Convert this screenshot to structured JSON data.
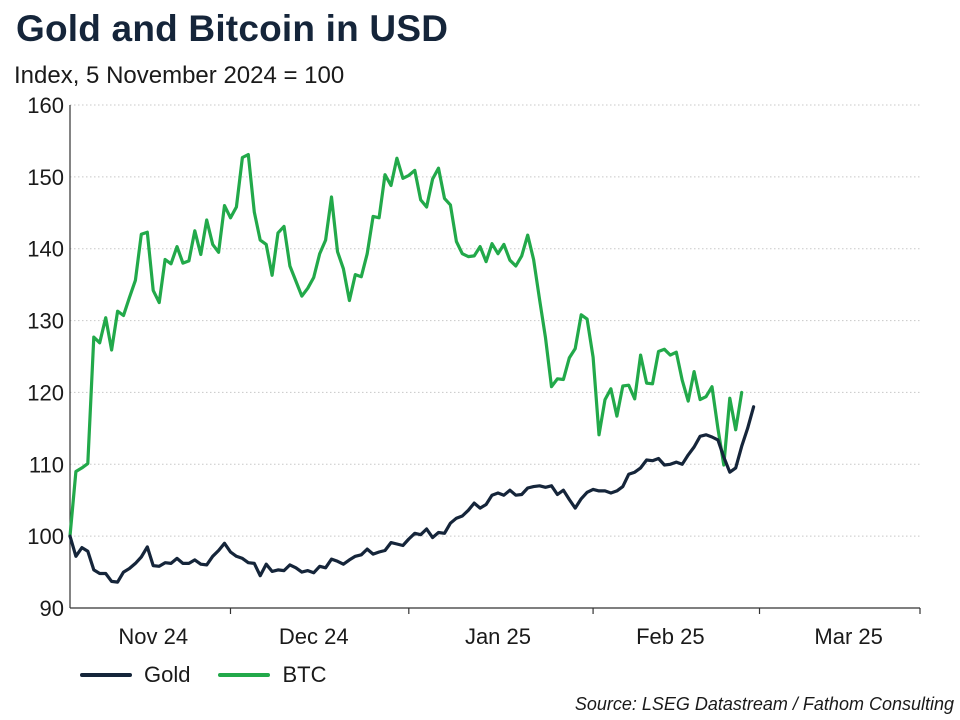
{
  "title": "Gold and Bitcoin in USD",
  "subtitle": "Index, 5 November 2024 = 100",
  "source": "Source: LSEG Datastream / Fathom Consulting",
  "colors": {
    "gold": "#15253a",
    "btc": "#22a94a",
    "grid": "#c8c8c8",
    "axis": "#333333"
  },
  "chart_data": {
    "type": "line",
    "ylim": [
      90,
      160
    ],
    "yticks": [
      90,
      100,
      110,
      120,
      130,
      140,
      150,
      160
    ],
    "x_start": "2024-11-05",
    "x_end": "2025-03-28",
    "xtick_labels": [
      {
        "label": "Nov 24",
        "date": "2024-11-19"
      },
      {
        "label": "Dec 24",
        "date": "2024-12-16"
      },
      {
        "label": "Jan 25",
        "date": "2025-01-16"
      },
      {
        "label": "Feb 25",
        "date": "2025-02-14"
      },
      {
        "label": "Mar 25",
        "date": "2025-03-16"
      }
    ],
    "xtick_dividers": [
      "2024-12-02",
      "2025-01-01",
      "2025-02-01",
      "2025-03-01",
      "2025-04-01"
    ],
    "grid": true,
    "legend": "bottom-left",
    "series": [
      {
        "name": "Gold",
        "points": [
          [
            "2024-11-05",
            100.0
          ],
          [
            "2024-11-06",
            97.2
          ],
          [
            "2024-11-07",
            98.4
          ],
          [
            "2024-11-08",
            97.9
          ],
          [
            "2024-11-09",
            95.3
          ],
          [
            "2024-11-10",
            94.8
          ],
          [
            "2024-11-11",
            94.8
          ],
          [
            "2024-11-12",
            93.7
          ],
          [
            "2024-11-13",
            93.6
          ],
          [
            "2024-11-14",
            95.0
          ],
          [
            "2024-11-15",
            95.5
          ],
          [
            "2024-11-16",
            96.2
          ],
          [
            "2024-11-17",
            97.1
          ],
          [
            "2024-11-18",
            98.5
          ],
          [
            "2024-11-19",
            95.9
          ],
          [
            "2024-11-20",
            95.8
          ],
          [
            "2024-11-21",
            96.3
          ],
          [
            "2024-11-22",
            96.2
          ],
          [
            "2024-11-23",
            96.9
          ],
          [
            "2024-11-24",
            96.2
          ],
          [
            "2024-11-25",
            96.2
          ],
          [
            "2024-11-26",
            96.7
          ],
          [
            "2024-11-27",
            96.1
          ],
          [
            "2024-11-28",
            96.0
          ],
          [
            "2024-11-29",
            97.2
          ],
          [
            "2024-11-30",
            98.0
          ],
          [
            "2024-12-01",
            99.0
          ],
          [
            "2024-12-02",
            97.8
          ],
          [
            "2024-12-03",
            97.2
          ],
          [
            "2024-12-04",
            96.9
          ],
          [
            "2024-12-05",
            96.3
          ],
          [
            "2024-12-06",
            96.2
          ],
          [
            "2024-12-07",
            94.5
          ],
          [
            "2024-12-08",
            96.1
          ],
          [
            "2024-12-09",
            95.1
          ],
          [
            "2024-12-10",
            95.3
          ],
          [
            "2024-12-11",
            95.2
          ],
          [
            "2024-12-12",
            96.0
          ],
          [
            "2024-12-13",
            95.6
          ],
          [
            "2024-12-14",
            95.0
          ],
          [
            "2024-12-15",
            95.2
          ],
          [
            "2024-12-16",
            94.9
          ],
          [
            "2024-12-17",
            95.8
          ],
          [
            "2024-12-18",
            95.6
          ],
          [
            "2024-12-19",
            96.8
          ],
          [
            "2024-12-20",
            96.5
          ],
          [
            "2024-12-21",
            96.1
          ],
          [
            "2024-12-22",
            96.7
          ],
          [
            "2024-12-23",
            97.2
          ],
          [
            "2024-12-24",
            97.4
          ],
          [
            "2024-12-25",
            98.2
          ],
          [
            "2024-12-26",
            97.5
          ],
          [
            "2024-12-27",
            97.8
          ],
          [
            "2024-12-28",
            98.0
          ],
          [
            "2024-12-29",
            99.1
          ],
          [
            "2024-12-30",
            98.9
          ],
          [
            "2024-12-31",
            98.7
          ],
          [
            "2025-01-01",
            99.6
          ],
          [
            "2025-01-02",
            100.4
          ],
          [
            "2025-01-03",
            100.2
          ],
          [
            "2025-01-04",
            101.0
          ],
          [
            "2025-01-05",
            99.8
          ],
          [
            "2025-01-06",
            100.5
          ],
          [
            "2025-01-07",
            100.4
          ],
          [
            "2025-01-08",
            101.8
          ],
          [
            "2025-01-09",
            102.5
          ],
          [
            "2025-01-10",
            102.8
          ],
          [
            "2025-01-11",
            103.6
          ],
          [
            "2025-01-12",
            104.6
          ],
          [
            "2025-01-13",
            103.9
          ],
          [
            "2025-01-14",
            104.4
          ],
          [
            "2025-01-15",
            105.7
          ],
          [
            "2025-01-16",
            106.0
          ],
          [
            "2025-01-17",
            105.7
          ],
          [
            "2025-01-18",
            106.4
          ],
          [
            "2025-01-19",
            105.7
          ],
          [
            "2025-01-20",
            105.8
          ],
          [
            "2025-01-21",
            106.7
          ],
          [
            "2025-01-22",
            106.9
          ],
          [
            "2025-01-23",
            107.0
          ],
          [
            "2025-01-24",
            106.8
          ],
          [
            "2025-01-25",
            107.0
          ],
          [
            "2025-01-26",
            105.8
          ],
          [
            "2025-01-27",
            106.4
          ],
          [
            "2025-01-28",
            105.1
          ],
          [
            "2025-01-29",
            103.9
          ],
          [
            "2025-01-30",
            105.2
          ],
          [
            "2025-01-31",
            106.1
          ],
          [
            "2025-02-01",
            106.5
          ],
          [
            "2025-02-02",
            106.3
          ],
          [
            "2025-02-03",
            106.3
          ],
          [
            "2025-02-04",
            106.0
          ],
          [
            "2025-02-05",
            106.3
          ],
          [
            "2025-02-06",
            106.9
          ],
          [
            "2025-02-07",
            108.6
          ],
          [
            "2025-02-08",
            108.9
          ],
          [
            "2025-02-09",
            109.5
          ],
          [
            "2025-02-10",
            110.6
          ],
          [
            "2025-02-11",
            110.5
          ],
          [
            "2025-02-12",
            110.8
          ],
          [
            "2025-02-13",
            109.9
          ],
          [
            "2025-02-14",
            110.0
          ],
          [
            "2025-02-15",
            110.3
          ],
          [
            "2025-02-16",
            110.0
          ],
          [
            "2025-02-17",
            111.3
          ],
          [
            "2025-02-18",
            112.4
          ],
          [
            "2025-02-19",
            113.9
          ],
          [
            "2025-02-20",
            114.1
          ],
          [
            "2025-02-21",
            113.8
          ],
          [
            "2025-02-22",
            113.4
          ],
          [
            "2025-02-23",
            111.0
          ],
          [
            "2025-02-24",
            108.9
          ],
          [
            "2025-02-25",
            109.5
          ],
          [
            "2025-02-26",
            112.5
          ],
          [
            "2025-02-27",
            115.0
          ],
          [
            "2025-02-28",
            118.0
          ]
        ]
      },
      {
        "name": "BTC",
        "points": [
          [
            "2024-11-05",
            100.0
          ],
          [
            "2024-11-06",
            109.0
          ],
          [
            "2024-11-07",
            109.5
          ],
          [
            "2024-11-08",
            110.1
          ],
          [
            "2024-11-09",
            127.7
          ],
          [
            "2024-11-10",
            126.9
          ],
          [
            "2024-11-11",
            130.4
          ],
          [
            "2024-11-12",
            125.9
          ],
          [
            "2024-11-13",
            131.3
          ],
          [
            "2024-11-14",
            130.7
          ],
          [
            "2024-11-15",
            133.2
          ],
          [
            "2024-11-16",
            135.6
          ],
          [
            "2024-11-17",
            142.0
          ],
          [
            "2024-11-18",
            142.3
          ],
          [
            "2024-11-19",
            134.2
          ],
          [
            "2024-11-20",
            132.5
          ],
          [
            "2024-11-21",
            138.5
          ],
          [
            "2024-11-22",
            137.9
          ],
          [
            "2024-11-23",
            140.3
          ],
          [
            "2024-11-24",
            138.0
          ],
          [
            "2024-11-25",
            138.3
          ],
          [
            "2024-11-26",
            142.5
          ],
          [
            "2024-11-27",
            139.2
          ],
          [
            "2024-11-28",
            144.0
          ],
          [
            "2024-11-29",
            140.6
          ],
          [
            "2024-11-30",
            139.5
          ],
          [
            "2024-12-01",
            146.0
          ],
          [
            "2024-12-02",
            144.3
          ],
          [
            "2024-12-03",
            145.8
          ],
          [
            "2024-12-04",
            152.7
          ],
          [
            "2024-12-05",
            153.1
          ],
          [
            "2024-12-06",
            145.1
          ],
          [
            "2024-12-07",
            141.2
          ],
          [
            "2024-12-08",
            140.6
          ],
          [
            "2024-12-09",
            136.3
          ],
          [
            "2024-12-10",
            142.2
          ],
          [
            "2024-12-11",
            143.1
          ],
          [
            "2024-12-12",
            137.6
          ],
          [
            "2024-12-13",
            135.5
          ],
          [
            "2024-12-14",
            133.4
          ],
          [
            "2024-12-15",
            134.5
          ],
          [
            "2024-12-16",
            136.0
          ],
          [
            "2024-12-17",
            139.3
          ],
          [
            "2024-12-18",
            141.2
          ],
          [
            "2024-12-19",
            147.2
          ],
          [
            "2024-12-20",
            139.6
          ],
          [
            "2024-12-21",
            137.2
          ],
          [
            "2024-12-22",
            132.8
          ],
          [
            "2024-12-23",
            136.4
          ],
          [
            "2024-12-24",
            136.1
          ],
          [
            "2024-12-25",
            139.3
          ],
          [
            "2024-12-26",
            144.5
          ],
          [
            "2024-12-27",
            144.3
          ],
          [
            "2024-12-28",
            150.3
          ],
          [
            "2024-12-29",
            148.8
          ],
          [
            "2024-12-30",
            152.6
          ],
          [
            "2024-12-31",
            149.8
          ],
          [
            "2025-01-01",
            150.2
          ],
          [
            "2025-01-02",
            150.9
          ],
          [
            "2025-01-03",
            146.8
          ],
          [
            "2025-01-04",
            145.8
          ],
          [
            "2025-01-05",
            149.7
          ],
          [
            "2025-01-06",
            151.2
          ],
          [
            "2025-01-07",
            147.0
          ],
          [
            "2025-01-08",
            146.1
          ],
          [
            "2025-01-09",
            141.0
          ],
          [
            "2025-01-10",
            139.3
          ],
          [
            "2025-01-11",
            138.9
          ],
          [
            "2025-01-12",
            139.0
          ],
          [
            "2025-01-13",
            140.3
          ],
          [
            "2025-01-14",
            138.2
          ],
          [
            "2025-01-15",
            140.7
          ],
          [
            "2025-01-16",
            139.3
          ],
          [
            "2025-01-17",
            140.6
          ],
          [
            "2025-01-18",
            138.4
          ],
          [
            "2025-01-19",
            137.6
          ],
          [
            "2025-01-20",
            139.0
          ],
          [
            "2025-01-21",
            141.9
          ],
          [
            "2025-01-22",
            138.5
          ],
          [
            "2025-01-23",
            132.9
          ],
          [
            "2025-01-24",
            127.6
          ],
          [
            "2025-01-25",
            120.8
          ],
          [
            "2025-01-26",
            121.9
          ],
          [
            "2025-01-27",
            121.8
          ],
          [
            "2025-01-28",
            124.8
          ],
          [
            "2025-01-29",
            126.1
          ],
          [
            "2025-01-30",
            130.8
          ],
          [
            "2025-01-31",
            130.2
          ],
          [
            "2025-02-01",
            124.9
          ],
          [
            "2025-02-02",
            114.1
          ],
          [
            "2025-02-03",
            119.0
          ],
          [
            "2025-02-04",
            120.5
          ],
          [
            "2025-02-05",
            116.7
          ],
          [
            "2025-02-06",
            120.9
          ],
          [
            "2025-02-07",
            121.0
          ],
          [
            "2025-02-08",
            119.1
          ],
          [
            "2025-02-09",
            125.2
          ],
          [
            "2025-02-10",
            121.3
          ],
          [
            "2025-02-11",
            121.2
          ],
          [
            "2025-02-12",
            125.7
          ],
          [
            "2025-02-13",
            126.0
          ],
          [
            "2025-02-14",
            125.2
          ],
          [
            "2025-02-15",
            125.6
          ],
          [
            "2025-02-16",
            121.7
          ],
          [
            "2025-02-17",
            118.8
          ],
          [
            "2025-02-18",
            122.9
          ],
          [
            "2025-02-19",
            119.0
          ],
          [
            "2025-02-20",
            119.4
          ],
          [
            "2025-02-21",
            120.8
          ],
          [
            "2025-02-22",
            115.0
          ],
          [
            "2025-02-23",
            109.9
          ],
          [
            "2025-02-24",
            119.2
          ],
          [
            "2025-02-25",
            114.8
          ],
          [
            "2025-02-26",
            120.0
          ]
        ]
      }
    ]
  }
}
